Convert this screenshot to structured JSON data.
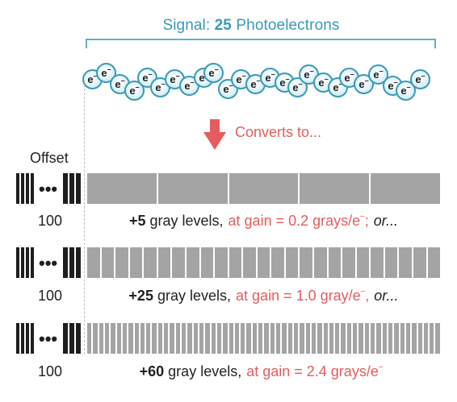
{
  "signal": {
    "prefix": "Signal:",
    "count": "25",
    "suffix": "Photoelectrons",
    "electron_label": "e",
    "electron_charge": "–",
    "electron_total": 25
  },
  "converts_label": "Converts to...",
  "offset": {
    "label": "Offset",
    "dots": "•••",
    "value": "100"
  },
  "rows": [
    {
      "gray_levels": "+5",
      "gray_text": "gray levels,",
      "gain_text": "at gain = 0.2 grays/e",
      "charge": "–",
      "trailing": ";",
      "or_text": "or...",
      "segments": 5
    },
    {
      "gray_levels": "+25",
      "gray_text": "gray levels,",
      "gain_text": "at gain = 1.0 gray/e",
      "charge": "–",
      "trailing": ",",
      "or_text": "or...",
      "segments": 25
    },
    {
      "gray_levels": "+60",
      "gray_text": "gray levels,",
      "gain_text": "at gain = 2.4 grays/e",
      "charge": "–",
      "trailing": "",
      "or_text": "",
      "segments": 60
    }
  ],
  "colors": {
    "signal_blue": "#3a9ab5",
    "gain_red": "#e45c5c",
    "gray_segment": "#a4a4a4",
    "offset_black": "#1e1e1e"
  }
}
